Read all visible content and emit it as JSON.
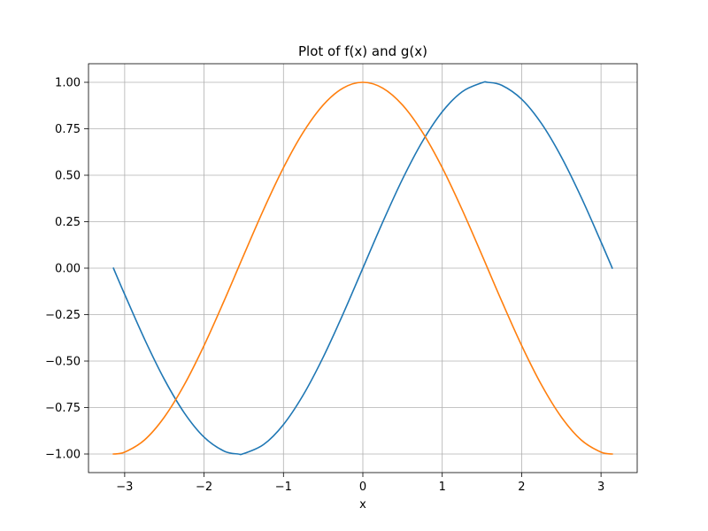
{
  "chart_data": {
    "type": "line",
    "title": "Plot of f(x) and g(x)",
    "xlabel": "x",
    "ylabel": "",
    "xlim": [
      -3.4557,
      3.4557
    ],
    "ylim": [
      -1.1,
      1.1
    ],
    "grid": true,
    "legend": "none",
    "x_ticks": [
      -3,
      -2,
      -1,
      0,
      1,
      2,
      3
    ],
    "x_tick_labels": [
      "−3",
      "−2",
      "−1",
      "0",
      "1",
      "2",
      "3"
    ],
    "y_ticks": [
      -1.0,
      -0.75,
      -0.5,
      -0.25,
      0.0,
      0.25,
      0.5,
      0.75,
      1.0
    ],
    "y_tick_labels": [
      "−1.00",
      "−0.75",
      "−0.50",
      "−0.25",
      "0.00",
      "0.25",
      "0.50",
      "0.75",
      "1.00"
    ],
    "x": [
      -3.1416,
      -3.0,
      -2.75,
      -2.5,
      -2.25,
      -2.0,
      -1.75,
      -1.5708,
      -1.5,
      -1.25,
      -1.0,
      -0.75,
      -0.5,
      -0.25,
      0.0,
      0.25,
      0.5,
      0.75,
      1.0,
      1.25,
      1.5,
      1.5708,
      1.75,
      2.0,
      2.25,
      2.5,
      2.75,
      3.0,
      3.1416
    ],
    "series": [
      {
        "color": "#1f77b4",
        "values": [
          0.0,
          -0.1411,
          -0.3817,
          -0.5985,
          -0.7781,
          -0.9093,
          -0.984,
          -1.0,
          -0.9975,
          -0.949,
          -0.8415,
          -0.6816,
          -0.4794,
          -0.2474,
          0.0,
          0.2474,
          0.4794,
          0.6816,
          0.8415,
          0.949,
          0.9975,
          1.0,
          0.984,
          0.9093,
          0.7781,
          0.5985,
          0.3817,
          0.1411,
          0.0
        ]
      },
      {
        "color": "#ff7f0e",
        "values": [
          -1.0,
          -0.99,
          -0.9243,
          -0.8011,
          -0.6282,
          -0.4161,
          -0.178,
          0.0,
          0.0707,
          0.3153,
          0.5403,
          0.7317,
          0.8776,
          0.9689,
          1.0,
          0.9689,
          0.8776,
          0.7317,
          0.5403,
          0.3153,
          0.0707,
          0.0,
          -0.178,
          -0.4161,
          -0.6282,
          -0.8011,
          -0.9243,
          -0.99,
          -1.0
        ]
      }
    ]
  }
}
